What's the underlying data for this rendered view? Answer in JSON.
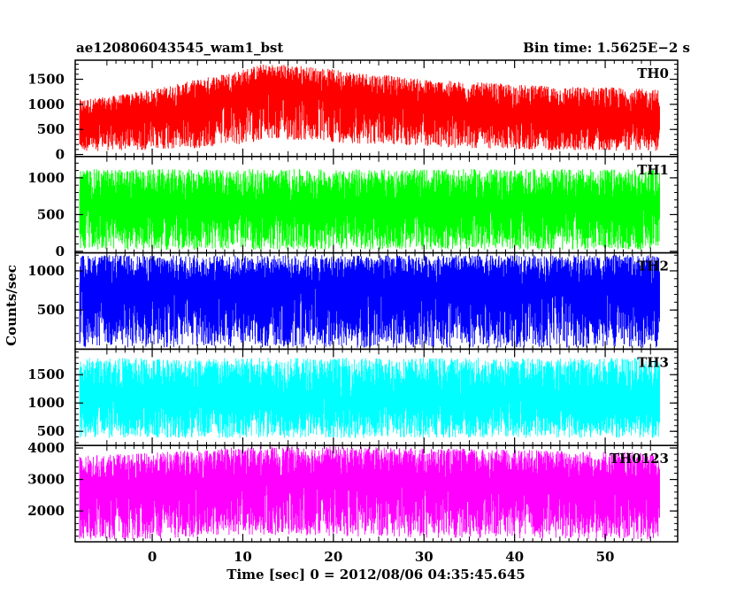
{
  "header": {
    "left": "ae120806043545_wam1_bst",
    "right": "Bin time: 1.5625E−2 s"
  },
  "ylabel": "Counts/sec",
  "xlabel": "Time [sec] 0 = 2012/08/06 04:35:45.645",
  "chart_data": {
    "type": "line",
    "title": "ae120806043545_wam1_bst",
    "subtitle": "Bin time: 1.5625E−2 s",
    "xlabel": "Time [sec] 0 = 2012/08/06 04:35:45.645",
    "ylabel": "Counts/sec",
    "xlim": [
      -8.5,
      58
    ],
    "data_x_range": [
      -8,
      56
    ],
    "x_ticks": [
      0,
      10,
      20,
      30,
      40,
      50
    ],
    "x_tick_labels": [
      "0",
      "10",
      "20",
      "30",
      "40",
      "50"
    ],
    "bin_time_s": 0.015625,
    "grid": false,
    "legend": "none",
    "panels": [
      {
        "name": "TH0",
        "color": "#ff0000",
        "ylim": [
          -40,
          1880
        ],
        "y_ticks": [
          0,
          500,
          1000,
          1500
        ],
        "y_tick_labels": [
          "0",
          "500",
          "1000",
          "1500"
        ],
        "envelope": {
          "x": [
            -8,
            -5,
            0,
            5,
            10,
            12,
            15,
            20,
            25,
            30,
            35,
            40,
            45,
            50,
            55,
            56
          ],
          "lower": [
            60,
            70,
            90,
            120,
            200,
            280,
            280,
            240,
            200,
            160,
            120,
            100,
            80,
            80,
            70,
            70
          ],
          "typical": [
            700,
            760,
            850,
            1000,
            1200,
            1300,
            1320,
            1200,
            1080,
            980,
            900,
            840,
            800,
            780,
            760,
            760
          ],
          "upper": [
            1100,
            1150,
            1300,
            1500,
            1700,
            1800,
            1800,
            1700,
            1600,
            1500,
            1450,
            1400,
            1350,
            1350,
            1300,
            1300
          ]
        }
      },
      {
        "name": "TH1",
        "color": "#00ff00",
        "ylim": [
          -20,
          1290
        ],
        "y_ticks": [
          0,
          500,
          1000
        ],
        "y_tick_labels": [
          "0",
          "500",
          "1000"
        ],
        "envelope": {
          "x": [
            -8,
            56
          ],
          "lower": [
            20,
            20
          ],
          "typical": [
            620,
            620
          ],
          "upper": [
            1120,
            1120
          ]
        }
      },
      {
        "name": "TH2",
        "color": "#0000ff",
        "ylim": [
          0,
          1230
        ],
        "y_ticks": [
          500,
          1000
        ],
        "y_tick_labels": [
          "500",
          "1000"
        ],
        "envelope": {
          "x": [
            -8,
            56
          ],
          "lower": [
            20,
            20
          ],
          "typical": [
            800,
            800
          ],
          "upper": [
            1200,
            1200
          ]
        }
      },
      {
        "name": "TH3",
        "color": "#00ffff",
        "ylim": [
          250,
          1950
        ],
        "y_ticks": [
          500,
          1000,
          1500
        ],
        "y_tick_labels": [
          "500",
          "1000",
          "1500"
        ],
        "envelope": {
          "x": [
            -8,
            56
          ],
          "lower": [
            380,
            380
          ],
          "typical": [
            1100,
            1100
          ],
          "upper": [
            1800,
            1800
          ]
        }
      },
      {
        "name": "TH0123",
        "color": "#ff00ff",
        "ylim": [
          1020,
          4080
        ],
        "y_ticks": [
          2000,
          3000,
          4000
        ],
        "y_tick_labels": [
          "2000",
          "3000",
          "4000"
        ],
        "envelope": {
          "x": [
            -8,
            0,
            10,
            20,
            30,
            40,
            50,
            56
          ],
          "lower": [
            1080,
            1100,
            1250,
            1200,
            1150,
            1120,
            1100,
            1100
          ],
          "typical": [
            2650,
            2750,
            3000,
            3050,
            3000,
            2900,
            2800,
            2750
          ],
          "upper": [
            3750,
            3850,
            4050,
            4050,
            4000,
            3950,
            3900,
            3850
          ]
        }
      }
    ]
  }
}
